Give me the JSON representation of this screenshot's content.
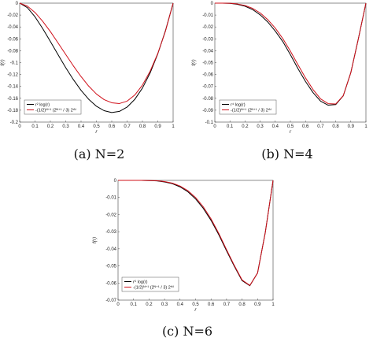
{
  "chart_data": [
    {
      "type": "line",
      "caption": "(a) N=2",
      "xlabel": "r",
      "ylabel": "f(r)",
      "xlim": [
        0,
        1
      ],
      "ylim": [
        -0.2,
        0
      ],
      "xticks": [
        "0",
        "0.1",
        "0.2",
        "0.3",
        "0.4",
        "0.5",
        "0.6",
        "0.7",
        "0.8",
        "0.9",
        "1"
      ],
      "yticks": [
        "0",
        "-0.02",
        "-0.04",
        "-0.06",
        "-0.08",
        "-0.1",
        "-0.12",
        "-0.14",
        "-0.16",
        "-0.18",
        "-0.2"
      ],
      "legend_position": "bottom-left",
      "x": [
        0,
        0.05,
        0.1,
        0.15,
        0.2,
        0.25,
        0.3,
        0.35,
        0.4,
        0.45,
        0.5,
        0.55,
        0.6,
        0.65,
        0.7,
        0.75,
        0.8,
        0.85,
        0.9,
        0.95,
        1
      ],
      "series": [
        {
          "name": "r² log(r)",
          "color": "#000000",
          "values": [
            0,
            -0.0075,
            -0.023,
            -0.0427,
            -0.0644,
            -0.0866,
            -0.1084,
            -0.1286,
            -0.1466,
            -0.1617,
            -0.1733,
            -0.1808,
            -0.1839,
            -0.182,
            -0.1748,
            -0.1618,
            -0.1428,
            -0.1174,
            -0.0853,
            -0.0463,
            0
          ]
        },
        {
          "name": "-(1/2)ᴺ⁺¹ (2ᴺ⁺¹ / 3) 2ʳᴺ",
          "color": "#d0101a",
          "values": [
            0,
            -0.005,
            -0.0157,
            -0.0305,
            -0.0478,
            -0.0669,
            -0.0863,
            -0.1055,
            -0.1235,
            -0.1396,
            -0.1527,
            -0.1622,
            -0.1675,
            -0.1688,
            -0.1648,
            -0.1545,
            -0.1378,
            -0.1145,
            -0.0846,
            -0.0472,
            0
          ]
        }
      ]
    },
    {
      "type": "line",
      "caption": "(b) N=4",
      "xlabel": "r",
      "ylabel": "f(r)",
      "xlim": [
        0,
        1
      ],
      "ylim": [
        -0.1,
        0
      ],
      "xticks": [
        "0",
        "0.1",
        "0.2",
        "0.3",
        "0.4",
        "0.5",
        "0.6",
        "0.7",
        "0.8",
        "0.9",
        "1"
      ],
      "yticks": [
        "0",
        "-0.01",
        "-0.02",
        "-0.03",
        "-0.04",
        "-0.05",
        "-0.06",
        "-0.07",
        "-0.08",
        "-0.09",
        "-0.1"
      ],
      "legend_position": "bottom-left",
      "x": [
        0,
        0.05,
        0.1,
        0.15,
        0.2,
        0.25,
        0.3,
        0.35,
        0.4,
        0.45,
        0.5,
        0.55,
        0.6,
        0.65,
        0.7,
        0.75,
        0.8,
        0.85,
        0.9,
        0.95,
        1
      ],
      "series": [
        {
          "name": "r⁴ log(r)",
          "color": "#000000",
          "values": [
            0,
            0,
            -0.0002,
            -0.001,
            -0.0026,
            -0.0054,
            -0.0098,
            -0.0158,
            -0.0235,
            -0.0323,
            -0.0433,
            -0.055,
            -0.0658,
            -0.0752,
            -0.0824,
            -0.0858,
            -0.0853,
            -0.0779,
            -0.0584,
            -0.0299,
            0
          ]
        },
        {
          "name": "-(1/2)ᴺ⁺¹ (2ᴺ⁺¹ / 3) 2ʳᴺ",
          "color": "#d0101a",
          "values": [
            0,
            0,
            -0.0001,
            -0.0007,
            -0.002,
            -0.0044,
            -0.0082,
            -0.0138,
            -0.021,
            -0.0298,
            -0.0403,
            -0.0517,
            -0.0628,
            -0.0726,
            -0.0805,
            -0.0845,
            -0.0848,
            -0.0778,
            -0.0585,
            -0.03,
            0
          ]
        }
      ]
    },
    {
      "type": "line",
      "caption": "(c) N=6",
      "xlabel": "r",
      "ylabel": "f(r)",
      "xlim": [
        0,
        1
      ],
      "ylim": [
        -0.07,
        0
      ],
      "xticks": [
        "0",
        "0.1",
        "0.2",
        "0.3",
        "0.4",
        "0.5",
        "0.6",
        "0.7",
        "0.8",
        "0.9",
        "1"
      ],
      "yticks": [
        "0",
        "-0.01",
        "-0.02",
        "-0.03",
        "-0.04",
        "-0.05",
        "-0.06",
        "-0.07"
      ],
      "legend_position": "bottom-left",
      "x": [
        0,
        0.05,
        0.1,
        0.15,
        0.2,
        0.25,
        0.3,
        0.35,
        0.4,
        0.45,
        0.5,
        0.55,
        0.6,
        0.65,
        0.7,
        0.75,
        0.8,
        0.85,
        0.9,
        0.95,
        1
      ],
      "series": [
        {
          "name": "r⁶ log(r)",
          "color": "#000000",
          "values": [
            0,
            0,
            0,
            0,
            -0.0001,
            -0.0003,
            -0.0009,
            -0.0019,
            -0.0038,
            -0.0066,
            -0.0108,
            -0.0164,
            -0.0234,
            -0.0318,
            -0.0412,
            -0.0502,
            -0.0586,
            -0.0616,
            -0.0541,
            -0.0303,
            0
          ]
        },
        {
          "name": "-(1/2)ᴺ⁺¹ (2ᴺ⁺¹ / 3) 2ʳᴺ",
          "color": "#d0101a",
          "values": [
            0,
            0,
            0,
            0,
            -0.0001,
            -0.0002,
            -0.0007,
            -0.0016,
            -0.0033,
            -0.006,
            -0.01,
            -0.0155,
            -0.0225,
            -0.031,
            -0.0405,
            -0.0497,
            -0.0582,
            -0.0614,
            -0.0542,
            -0.0305,
            0
          ]
        }
      ]
    }
  ]
}
